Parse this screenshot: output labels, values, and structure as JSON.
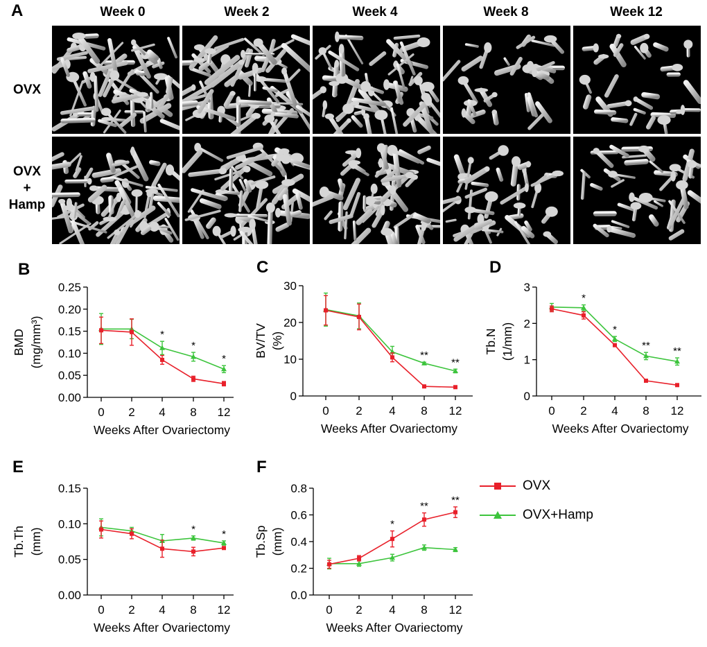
{
  "figure": {
    "panel_a_letter": "A",
    "columns": [
      "Week 0",
      "Week 2",
      "Week 4",
      "Week 8",
      "Week 12"
    ],
    "rows": [
      {
        "lines": [
          "OVX"
        ]
      },
      {
        "lines": [
          "OVX",
          "+",
          "Hamp"
        ]
      }
    ],
    "bone_density": [
      [
        0.95,
        0.95,
        0.7,
        0.28,
        0.25
      ],
      [
        0.9,
        0.8,
        0.72,
        0.5,
        0.45
      ]
    ]
  },
  "legend": {
    "entries": [
      {
        "label": "OVX",
        "color": "#e8202a",
        "marker": "square"
      },
      {
        "label": "OVX+Hamp",
        "color": "#3cc43c",
        "marker": "triangle"
      }
    ]
  },
  "colors": {
    "ovx": "#e8202a",
    "hamp": "#3cc43c"
  },
  "chart_data": [
    {
      "panel": "B",
      "type": "line",
      "ylabel_lines": [
        "BMD",
        "(mg/mm³)"
      ],
      "xlabel": "Weeks After Ovariectomy",
      "categories": [
        "0",
        "2",
        "4",
        "8",
        "12"
      ],
      "ylim": [
        0,
        0.25
      ],
      "yticks": [
        "0.00",
        "0.05",
        "0.10",
        "0.15",
        "0.20",
        "0.25"
      ],
      "series": [
        {
          "name": "OVX",
          "values": [
            0.152,
            0.148,
            0.085,
            0.042,
            0.031
          ],
          "errors": [
            0.03,
            0.03,
            0.01,
            0.006,
            0.005
          ]
        },
        {
          "name": "OVX+Hamp",
          "values": [
            0.155,
            0.155,
            0.112,
            0.092,
            0.064
          ],
          "errors": [
            0.035,
            0.022,
            0.015,
            0.01,
            0.008
          ]
        }
      ],
      "significance": [
        "",
        "",
        "*",
        "*",
        "*"
      ]
    },
    {
      "panel": "C",
      "type": "line",
      "ylabel_lines": [
        "BV/TV",
        "(%)"
      ],
      "xlabel": "Weeks After Ovariectomy",
      "categories": [
        "0",
        "2",
        "4",
        "8",
        "12"
      ],
      "ylim": [
        0,
        30
      ],
      "yticks": [
        "0",
        "10",
        "20",
        "30"
      ],
      "series": [
        {
          "name": "OVX",
          "values": [
            23.3,
            21.5,
            10.5,
            2.6,
            2.4
          ],
          "errors": [
            4,
            3.5,
            1.2,
            0.3,
            0.2
          ]
        },
        {
          "name": "OVX+Hamp",
          "values": [
            23.5,
            21.8,
            12,
            8.9,
            6.8
          ],
          "errors": [
            4.5,
            3.5,
            1.5,
            0.3,
            0.5
          ]
        }
      ],
      "significance": [
        "",
        "",
        "",
        "**",
        "**"
      ]
    },
    {
      "panel": "D",
      "type": "line",
      "ylabel_lines": [
        "Tb.N",
        "(1/mm)"
      ],
      "xlabel": "Weeks After Ovariectomy",
      "categories": [
        "0",
        "2",
        "4",
        "8",
        "12"
      ],
      "ylim": [
        0,
        3
      ],
      "yticks": [
        "0",
        "1",
        "2",
        "3"
      ],
      "series": [
        {
          "name": "OVX",
          "values": [
            2.4,
            2.22,
            1.4,
            0.42,
            0.3
          ],
          "errors": [
            0.08,
            0.1,
            0.03,
            0.02,
            0.02
          ]
        },
        {
          "name": "OVX+Hamp",
          "values": [
            2.45,
            2.43,
            1.57,
            1.1,
            0.95
          ],
          "errors": [
            0.1,
            0.08,
            0.07,
            0.1,
            0.1
          ]
        }
      ],
      "significance": [
        "",
        "*",
        "*",
        "**",
        "**"
      ]
    },
    {
      "panel": "E",
      "type": "line",
      "ylabel_lines": [
        "Tb.Th",
        "(mm)"
      ],
      "xlabel": "Weeks After Ovariectomy",
      "categories": [
        "0",
        "2",
        "4",
        "8",
        "12"
      ],
      "ylim": [
        0,
        0.15
      ],
      "yticks": [
        "0.00",
        "0.05",
        "0.10",
        "0.15"
      ],
      "series": [
        {
          "name": "OVX",
          "values": [
            0.092,
            0.086,
            0.065,
            0.061,
            0.066
          ],
          "errors": [
            0.012,
            0.007,
            0.012,
            0.006,
            0.002
          ]
        },
        {
          "name": "OVX+Hamp",
          "values": [
            0.095,
            0.09,
            0.076,
            0.08,
            0.073
          ],
          "errors": [
            0.012,
            0.005,
            0.009,
            0.003,
            0.003
          ]
        }
      ],
      "significance": [
        "",
        "",
        "",
        "*",
        "*"
      ]
    },
    {
      "panel": "F",
      "type": "line",
      "ylabel_lines": [
        "Tb.Sp",
        "(mm)"
      ],
      "xlabel": "Weeks After Ovariectomy",
      "categories": [
        "0",
        "2",
        "4",
        "8",
        "12"
      ],
      "ylim": [
        0,
        0.8
      ],
      "yticks": [
        "0.0",
        "0.2",
        "0.4",
        "0.6",
        "0.8"
      ],
      "series": [
        {
          "name": "OVX",
          "values": [
            0.23,
            0.275,
            0.42,
            0.565,
            0.62
          ],
          "errors": [
            0.03,
            0.02,
            0.06,
            0.05,
            0.04
          ]
        },
        {
          "name": "OVX+Hamp",
          "values": [
            0.235,
            0.235,
            0.28,
            0.355,
            0.34
          ],
          "errors": [
            0.04,
            0.02,
            0.025,
            0.02,
            0.015
          ]
        }
      ],
      "significance": [
        "",
        "",
        "*",
        "**",
        "**"
      ]
    }
  ]
}
